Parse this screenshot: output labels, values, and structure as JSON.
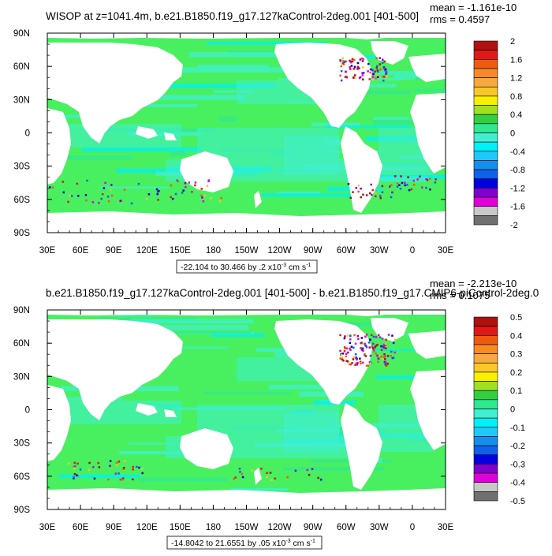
{
  "panels": [
    {
      "title": "WISOP at z=1041.4m, b.e21.B1850.f19_g17.127kaControl-2deg.001 [401-500]",
      "stats_mean": "mean = -1.161e-10",
      "stats_rms": "rms = 0.4597",
      "range_label": "-22.104 to 30.466 by .2 x10",
      "range_exp": "-3",
      "range_unit": " cm s",
      "range_unit_exp": "-1",
      "colorbar_labels": [
        "2",
        "1.6",
        "1.2",
        "0.8",
        "0.4",
        "0",
        "-0.4",
        "-0.8",
        "-1.2",
        "-1.6",
        "-2"
      ]
    },
    {
      "title": "b.e21.B1850.f19_g17.127kaControl-2deg.001 [401-500] - b.e21.B1850.f19_g17.CMIP6-piControl-2deg.0",
      "stats_mean": "mean = -2.213e-10",
      "stats_rms": "rms = 0.1075",
      "range_label": "-14.8042 to 21.6551 by .05 x10",
      "range_exp": "-3",
      "range_unit": " cm s",
      "range_unit_exp": "-1",
      "colorbar_labels": [
        "0.5",
        "0.4",
        "0.3",
        "0.2",
        "0.1",
        "0",
        "-0.1",
        "-0.2",
        "-0.3",
        "-0.4",
        "-0.5"
      ]
    }
  ],
  "colorbar_colors": [
    "#b01010",
    "#e01818",
    "#f05a10",
    "#f88a20",
    "#f8a840",
    "#f8c828",
    "#f8f000",
    "#a0e020",
    "#30d040",
    "#30e890",
    "#40f0d0",
    "#00f0f8",
    "#20c8f8",
    "#1090f0",
    "#1060e8",
    "#0000e0",
    "#8000d0",
    "#e000d8",
    "#c8c8c8",
    "#707070"
  ],
  "land_color": "#ffffff",
  "ocean_color": "#48f060",
  "chart_data": [
    {
      "type": "heatmap",
      "title": "WISOP at z=1041.4m, b.e21.B1850.f19_g17.127kaControl-2deg.001 [401-500]",
      "x_ticks": [
        "30E",
        "60E",
        "90E",
        "120E",
        "150E",
        "180",
        "150W",
        "120W",
        "90W",
        "60W",
        "30W",
        "0",
        "30E"
      ],
      "y_ticks": [
        "90N",
        "60N",
        "30N",
        "0",
        "30S",
        "60S",
        "90S"
      ],
      "xlim": [
        30,
        390
      ],
      "ylim": [
        -90,
        90
      ],
      "min": -22.104,
      "max": 30.466,
      "levels": [
        -2,
        -1.8,
        -1.6,
        -1.4,
        -1.2,
        -1,
        -0.8,
        -0.6,
        -0.4,
        -0.2,
        0,
        0.2,
        0.4,
        0.6,
        0.8,
        1,
        1.2,
        1.4,
        1.6,
        1.8,
        2
      ]
    },
    {
      "type": "heatmap",
      "title": "b.e21.B1850.f19_g17.127kaControl-2deg.001 [401-500] - b.e21.B1850.f19_g17.CMIP6-piControl-2deg.0",
      "x_ticks": [
        "30E",
        "60E",
        "90E",
        "120E",
        "150E",
        "180",
        "150W",
        "120W",
        "90W",
        "60W",
        "30W",
        "0",
        "30E"
      ],
      "y_ticks": [
        "90N",
        "60N",
        "30N",
        "0",
        "30S",
        "60S",
        "90S"
      ],
      "xlim": [
        30,
        390
      ],
      "ylim": [
        -90,
        90
      ],
      "min": -14.8042,
      "max": 21.6551,
      "levels": [
        -0.5,
        -0.45,
        -0.4,
        -0.35,
        -0.3,
        -0.25,
        -0.2,
        -0.15,
        -0.1,
        -0.05,
        0,
        0.05,
        0.1,
        0.15,
        0.2,
        0.25,
        0.3,
        0.35,
        0.4,
        0.45,
        0.5
      ]
    }
  ]
}
